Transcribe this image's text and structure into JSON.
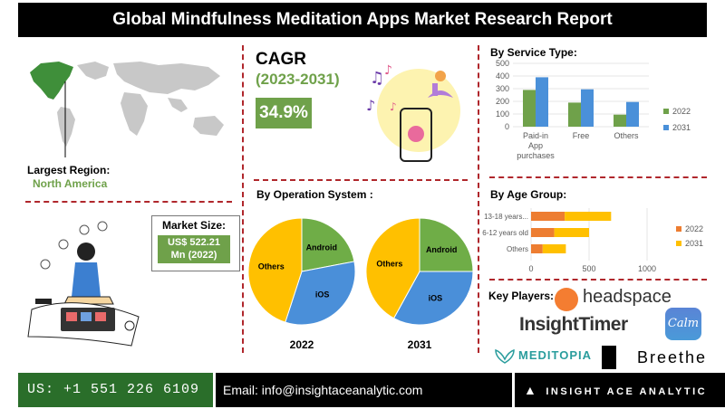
{
  "title": "Global Mindfulness Meditation Apps Market Research Report",
  "largest_region": {
    "label": "Largest Region:",
    "value": "North America"
  },
  "cagr": {
    "label": "CAGR",
    "period": "(2023-2031)",
    "value": "34.9%"
  },
  "market_size": {
    "label": "Market Size:",
    "value_line1": "US$ 522.21",
    "value_line2": "Mn (2022)"
  },
  "key_players": {
    "label": "Key Players:",
    "headspace": "headspace",
    "insighttimer": "InsightTimer",
    "calm": "Calm",
    "meditopia": "MEDITOPIA",
    "breethe": "Breethe"
  },
  "footer": {
    "phone": "US: +1 551 226 6109",
    "email": "Email: info@insightaceanalytic.com",
    "brand": "INSIGHT ACE ANALYTIC"
  },
  "colors": {
    "green": "#6fa14a",
    "blue": "#4a90d9",
    "orange": "#ed7d31",
    "yellow": "#ffc000",
    "pie_yellow": "#ffc000",
    "pie_blue": "#4a8fd9",
    "pie_green": "#6fad47"
  },
  "chart_data": [
    {
      "title": "By Service Type:",
      "type": "bar",
      "categories": [
        "Paid-in App purchases",
        "Free",
        "Others"
      ],
      "category_lines": [
        [
          "Paid-in",
          "App",
          "purchases"
        ],
        [
          "Free"
        ],
        [
          "Others"
        ]
      ],
      "series": [
        {
          "name": "2022",
          "values": [
            290,
            190,
            95
          ],
          "color": "#6fa14a"
        },
        {
          "name": "2031",
          "values": [
            390,
            295,
            195
          ],
          "color": "#4a90d9"
        }
      ],
      "ylim": [
        0,
        500
      ],
      "yticks": [
        0,
        100,
        200,
        300,
        400,
        500
      ],
      "legend": "right"
    },
    {
      "title": "By Operation System :",
      "type": "pie",
      "charts": [
        {
          "label": "2022",
          "slices": [
            {
              "name": "Android",
              "value": 22,
              "color": "#6fad47"
            },
            {
              "name": "iOS",
              "value": 33,
              "color": "#4a8fd9"
            },
            {
              "name": "Others",
              "value": 45,
              "color": "#ffc000"
            }
          ]
        },
        {
          "label": "2031",
          "slices": [
            {
              "name": "Android",
              "value": 25,
              "color": "#6fad47"
            },
            {
              "name": "iOS",
              "value": 33,
              "color": "#4a8fd9"
            },
            {
              "name": "Others",
              "value": 42,
              "color": "#ffc000"
            }
          ]
        }
      ]
    },
    {
      "title": "By Age Group:",
      "type": "bar",
      "orientation": "horizontal",
      "stacked": true,
      "categories": [
        "13-18 years...",
        "6-12 years old",
        "Others"
      ],
      "series": [
        {
          "name": "2022",
          "values": [
            290,
            200,
            100
          ],
          "color": "#ed7d31"
        },
        {
          "name": "2031",
          "values": [
            400,
            300,
            200
          ],
          "color": "#ffc000"
        }
      ],
      "xlim": [
        0,
        1000
      ],
      "xticks": [
        0,
        500,
        1000
      ],
      "legend": "right"
    }
  ]
}
